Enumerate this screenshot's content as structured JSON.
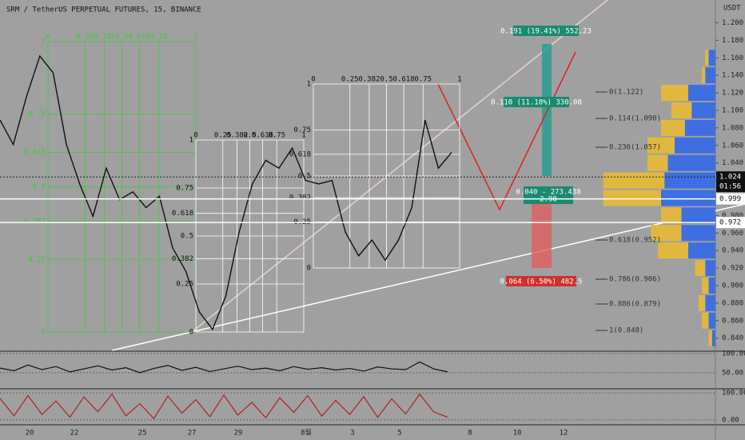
{
  "chart_data": {
    "type": "line",
    "title": "SRM / TetherUS PERPETUAL FUTURES, 15, BINANCE",
    "currency": "USDT",
    "countdown": "01:56",
    "x_labels": [
      "20",
      "22",
      "25",
      "27",
      "29",
      "8월",
      "3",
      "5",
      "8",
      "10",
      "12"
    ],
    "series": [
      {
        "color": "#111111",
        "values": [
          1.089,
          1.061,
          1.116,
          1.162,
          1.143,
          1.061,
          1.016,
          0.979,
          1.034,
          0.998,
          1.007,
          0.989,
          1.002,
          0.943,
          0.916,
          0.87,
          0.85,
          0.888,
          0.961,
          1.016,
          1.043,
          1.034,
          1.057,
          1.02,
          1.016,
          1.02,
          0.961,
          0.934,
          0.952,
          0.929,
          0.952,
          0.989,
          1.089,
          1.034,
          1.052
        ]
      }
    ],
    "ylim": [
      0.826,
      1.226
    ],
    "yticks": [
      {
        "value": 0.84,
        "label": "0.840"
      },
      {
        "value": 0.86,
        "label": "0.860"
      },
      {
        "value": 0.88,
        "label": "0.880"
      },
      {
        "value": 0.9,
        "label": "0.900"
      },
      {
        "value": 0.92,
        "label": "0.920"
      },
      {
        "value": 0.94,
        "label": "0.940"
      },
      {
        "value": 0.96,
        "label": "0.960"
      },
      {
        "value": 0.98,
        "label": "0.980"
      },
      {
        "value": 1.0,
        "label": "1.000"
      },
      {
        "value": 1.02,
        "label": "1.020"
      },
      {
        "value": 1.04,
        "label": "1.040"
      },
      {
        "value": 1.06,
        "label": "1.060"
      },
      {
        "value": 1.08,
        "label": "1.080"
      },
      {
        "value": 1.1,
        "label": "1.100"
      },
      {
        "value": 1.12,
        "label": "1.120"
      },
      {
        "value": 1.14,
        "label": "1.140"
      },
      {
        "value": 1.16,
        "label": "1.160"
      },
      {
        "value": 1.18,
        "label": "1.180"
      },
      {
        "value": 1.2,
        "label": "1.200"
      }
    ],
    "price_markers": [
      {
        "value": 1.024,
        "label": "1.024",
        "color": "#111111"
      },
      {
        "value": 0.999,
        "label": "0.999",
        "color": "#ffffff"
      },
      {
        "value": 0.972,
        "label": "0.972",
        "color": "#ffffff"
      }
    ],
    "fib_levels": [
      0,
      0.25,
      0.382,
      0.5,
      0.618,
      0.75,
      1
    ],
    "fib_retracement": [
      "0(1.122)",
      "0.114(1.090)",
      "0.236(1.057)",
      "0.618(0.952)",
      "0.786(0.906)",
      "0.886(0.879)",
      "1(0.848)"
    ],
    "positions": [
      "0.191 (19.41%) 552.23",
      "0.110 (11.18%) 330.08",
      "0.040 - 273.438",
      "2.98",
      "0.064 (6.50%) 482.5"
    ],
    "volume_profile": {
      "prices": [
        1.16,
        1.14,
        1.12,
        1.1,
        1.08,
        1.06,
        1.04,
        1.02,
        1.0,
        0.98,
        0.96,
        0.94,
        0.92,
        0.9,
        0.88,
        0.86,
        0.84
      ],
      "buy": [
        10,
        15,
        40,
        35,
        45,
        60,
        70,
        75,
        80,
        50,
        50,
        40,
        15,
        10,
        15,
        10,
        5
      ],
      "sell": [
        5,
        5,
        40,
        30,
        35,
        40,
        30,
        90,
        85,
        30,
        45,
        45,
        15,
        10,
        10,
        10,
        5
      ],
      "buy_color": "#3d6fe0",
      "sell_color": "#e0b840"
    },
    "osc1": {
      "ylim": [
        10,
        104
      ],
      "yticks": [
        {
          "value": 100,
          "label": "100.00"
        },
        {
          "value": 50,
          "label": "50.00"
        }
      ],
      "values": [
        62,
        55,
        70,
        58,
        66,
        52,
        60,
        68,
        57,
        63,
        50,
        61,
        69,
        56,
        64,
        53,
        60,
        67,
        58,
        62,
        55,
        66,
        59,
        63,
        57,
        61,
        54,
        65,
        60,
        58,
        78,
        60,
        52
      ]
    },
    "osc2": {
      "ylim": [
        -15,
        112
      ],
      "yticks": [
        {
          "value": 100,
          "label": "100.00"
        },
        {
          "value": 0,
          "label": "0.00"
        }
      ],
      "values": [
        80,
        15,
        90,
        20,
        70,
        10,
        85,
        30,
        95,
        15,
        60,
        5,
        88,
        25,
        75,
        12,
        92,
        18,
        65,
        8,
        82,
        28,
        90,
        14,
        72,
        20,
        86,
        10,
        78,
        22,
        95,
        30,
        10
      ]
    }
  }
}
